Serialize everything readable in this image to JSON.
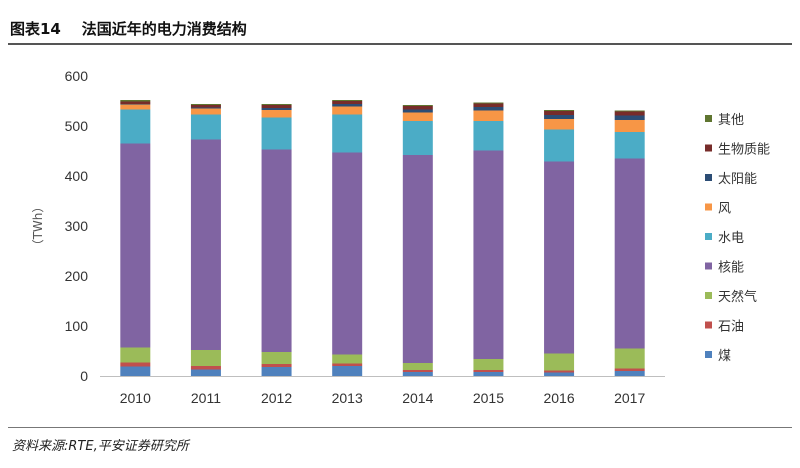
{
  "header": {
    "title": "图表14    法国近年的电力消费结构"
  },
  "footer": {
    "source": "资料来源:RTE,平安证券研究所"
  },
  "chart_data": {
    "type": "bar",
    "stacked": true,
    "categories": [
      "2010",
      "2011",
      "2012",
      "2013",
      "2014",
      "2015",
      "2016",
      "2017"
    ],
    "ylabel": "（TWh）",
    "ylim": [
      0,
      600
    ],
    "yticks": [
      0,
      100,
      200,
      300,
      400,
      500,
      600
    ],
    "grid": false,
    "legend_position": "right",
    "series": [
      {
        "name": "煤",
        "color": "#4f81bd",
        "values": [
          19,
          13,
          18,
          20,
          8,
          8,
          7,
          10
        ]
      },
      {
        "name": "石油",
        "color": "#c0504d",
        "values": [
          8,
          7,
          6,
          5,
          4,
          4,
          4,
          5
        ]
      },
      {
        "name": "天然气",
        "color": "#9bbb59",
        "values": [
          30,
          32,
          24,
          18,
          14,
          22,
          34,
          40
        ]
      },
      {
        "name": "核能",
        "color": "#8064a2",
        "values": [
          408,
          421,
          405,
          404,
          416,
          417,
          384,
          380
        ]
      },
      {
        "name": "水电",
        "color": "#4bacc6",
        "values": [
          68,
          50,
          64,
          76,
          68,
          59,
          64,
          53
        ]
      },
      {
        "name": "风",
        "color": "#f79646",
        "values": [
          10,
          12,
          15,
          16,
          17,
          21,
          21,
          24
        ]
      },
      {
        "name": "太阳能",
        "color": "#2c4d75",
        "values": [
          1,
          2,
          4,
          5,
          6,
          7,
          8,
          9
        ]
      },
      {
        "name": "生物质能",
        "color": "#772c2a",
        "values": [
          5,
          5,
          6,
          6,
          7,
          7,
          8,
          8
        ]
      },
      {
        "name": "其他",
        "color": "#5f7530",
        "values": [
          3,
          2,
          2,
          2,
          2,
          2,
          2,
          2
        ]
      }
    ]
  }
}
